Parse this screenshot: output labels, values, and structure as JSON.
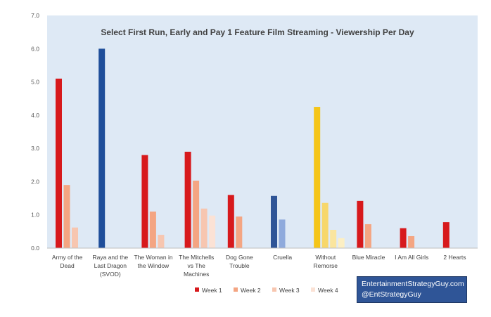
{
  "chart_data": {
    "type": "bar",
    "title": "Select First Run, Early and Pay 1 Feature Film Streaming - Viewership Per Day",
    "xlabel": "",
    "ylabel": "",
    "ylim": [
      0,
      7
    ],
    "y_ticks": [
      "0.0",
      "1.0",
      "2.0",
      "3.0",
      "4.0",
      "5.0",
      "6.0",
      "7.0"
    ],
    "grid": false,
    "legend_position": "bottom",
    "categories": [
      [
        "Army of the",
        "Dead"
      ],
      [
        "Raya and the",
        "Last Dragon",
        "(SVOD)"
      ],
      [
        "The Woman in",
        "the Window"
      ],
      [
        "The Mitchells",
        "vs The",
        "Machines"
      ],
      [
        "Dog Gone",
        "Trouble"
      ],
      [
        "Cruella"
      ],
      [
        "Without",
        "Remorse"
      ],
      [
        "Blue Miracle"
      ],
      [
        "I Am All Girls"
      ],
      [
        "2 Hearts"
      ]
    ],
    "series": [
      {
        "name": "Week 1",
        "color": "#d7191c",
        "values": [
          5.1,
          6.0,
          2.8,
          2.9,
          1.6,
          1.57,
          4.25,
          1.42,
          0.6,
          0.78
        ]
      },
      {
        "name": "Week 2",
        "color": "#f4a582",
        "values": [
          1.9,
          null,
          1.1,
          2.03,
          0.95,
          0.86,
          1.36,
          0.72,
          0.36,
          null
        ]
      },
      {
        "name": "Week 3",
        "color": "#f7c6b0",
        "values": [
          0.62,
          null,
          0.4,
          1.19,
          null,
          null,
          0.55,
          null,
          null,
          null
        ]
      },
      {
        "name": "Week 4",
        "color": "#fbe2d5",
        "values": [
          null,
          null,
          null,
          0.98,
          null,
          null,
          0.3,
          null,
          null,
          null
        ]
      }
    ],
    "bar_color_overrides": [
      {
        "category": 1,
        "series": 0,
        "color": "#1f4e9a"
      },
      {
        "category": 5,
        "series": 0,
        "color": "#2f5597"
      },
      {
        "category": 5,
        "series": 1,
        "color": "#8faadc"
      },
      {
        "category": 6,
        "series": 0,
        "color": "#f5c518"
      },
      {
        "category": 6,
        "series": 1,
        "color": "#f7d76a"
      },
      {
        "category": 6,
        "series": 2,
        "color": "#fae59e"
      },
      {
        "category": 6,
        "series": 3,
        "color": "#fcefc4"
      }
    ]
  },
  "credit": {
    "line1": "EntertainmentStrategyGuy.com",
    "line2": "@EntStrategyGuy"
  }
}
